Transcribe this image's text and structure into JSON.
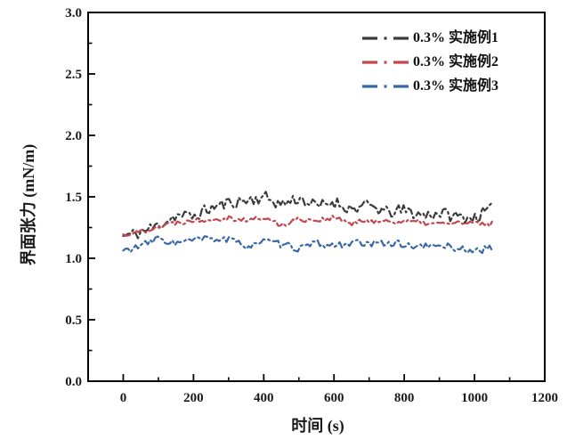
{
  "chart_data": {
    "type": "line",
    "title": "",
    "xlabel": "时间 (s)",
    "ylabel": "界面张力 (mN/m)",
    "xlim": [
      -100,
      1200
    ],
    "ylim": [
      0.0,
      3.0
    ],
    "x_major_ticks": [
      0,
      200,
      400,
      600,
      800,
      1000,
      1200
    ],
    "x_minor_step": 100,
    "y_major_ticks": [
      "0.0",
      "0.5",
      "1.0",
      "1.5",
      "2.0",
      "2.5",
      "3.0"
    ],
    "y_minor_step": 0.25,
    "grid": false,
    "legend_position": "top-right-inside",
    "line_style": "dash-dot",
    "frame_color": "#000000",
    "series": [
      {
        "name": "0.3% 实施例1",
        "color": "#3b3b3b",
        "noise": 0.05,
        "seed": 11,
        "x": [
          0,
          50,
          100,
          150,
          200,
          250,
          300,
          350,
          400,
          450,
          500,
          550,
          600,
          650,
          700,
          750,
          800,
          850,
          900,
          950,
          1000,
          1050
        ],
        "y": [
          1.18,
          1.21,
          1.27,
          1.35,
          1.34,
          1.41,
          1.45,
          1.47,
          1.5,
          1.44,
          1.49,
          1.42,
          1.46,
          1.4,
          1.43,
          1.37,
          1.39,
          1.35,
          1.37,
          1.34,
          1.33,
          1.41
        ]
      },
      {
        "name": "0.3% 实施例2",
        "color": "#c4474d",
        "noise": 0.022,
        "seed": 22,
        "x": [
          0,
          50,
          100,
          150,
          200,
          250,
          300,
          350,
          400,
          450,
          500,
          550,
          600,
          650,
          700,
          750,
          800,
          850,
          900,
          950,
          1000,
          1050
        ],
        "y": [
          1.19,
          1.22,
          1.26,
          1.29,
          1.31,
          1.32,
          1.33,
          1.31,
          1.33,
          1.27,
          1.32,
          1.31,
          1.33,
          1.28,
          1.31,
          1.3,
          1.3,
          1.29,
          1.28,
          1.29,
          1.28,
          1.28
        ]
      },
      {
        "name": "0.3% 实施例3",
        "color": "#3769a8",
        "noise": 0.028,
        "seed": 33,
        "x": [
          0,
          50,
          100,
          150,
          200,
          250,
          300,
          350,
          400,
          450,
          500,
          550,
          600,
          650,
          700,
          750,
          800,
          850,
          900,
          950,
          1000,
          1050
        ],
        "y": [
          1.06,
          1.1,
          1.16,
          1.12,
          1.15,
          1.16,
          1.15,
          1.1,
          1.14,
          1.11,
          1.08,
          1.12,
          1.1,
          1.13,
          1.11,
          1.13,
          1.11,
          1.09,
          1.11,
          1.08,
          1.06,
          1.08
        ]
      }
    ]
  }
}
